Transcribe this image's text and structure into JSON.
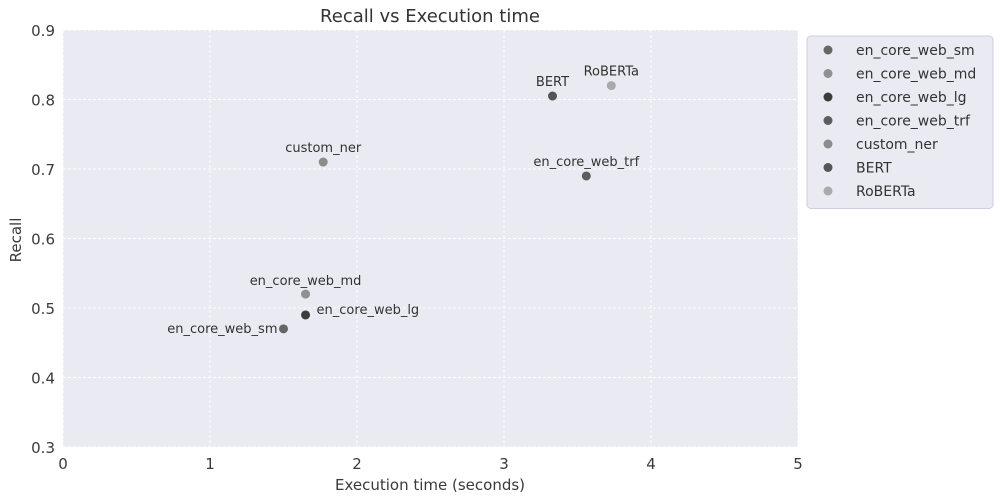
{
  "chart_data": {
    "type": "scatter",
    "title": "Recall vs Execution time",
    "xlabel": "Execution time (seconds)",
    "ylabel": "Recall",
    "xlim": [
      0,
      5
    ],
    "ylim": [
      0.3,
      0.9
    ],
    "x_ticks": [
      "0",
      "1",
      "2",
      "3",
      "4",
      "5"
    ],
    "y_ticks": [
      "0.3",
      "0.4",
      "0.5",
      "0.6",
      "0.7",
      "0.8",
      "0.9"
    ],
    "grid": true,
    "legend_position": "outside-right-top",
    "series": [
      {
        "name": "en_core_web_sm",
        "x": 1.5,
        "y": 0.47,
        "label": "en_core_web_sm",
        "color": "#666666"
      },
      {
        "name": "en_core_web_md",
        "x": 1.65,
        "y": 0.52,
        "label": "en_core_web_md",
        "color": "#909090"
      },
      {
        "name": "en_core_web_lg",
        "x": 1.65,
        "y": 0.49,
        "label": "en_core_web_lg",
        "color": "#3c3c3c"
      },
      {
        "name": "en_core_web_trf",
        "x": 3.56,
        "y": 0.69,
        "label": "en_core_web_trf",
        "color": "#5c5c5c"
      },
      {
        "name": "custom_ner",
        "x": 1.77,
        "y": 0.71,
        "label": "custom_ner",
        "color": "#8c8c8c"
      },
      {
        "name": "BERT",
        "x": 3.33,
        "y": 0.805,
        "label": "BERT",
        "color": "#555555"
      },
      {
        "name": "RoBERTa",
        "x": 3.73,
        "y": 0.82,
        "label": "RoBERTa",
        "color": "#aaaaaa"
      }
    ]
  },
  "colors": {
    "plot_background": "#eaeaf2",
    "grid": "#ffffff",
    "legend_background": "#eaeaf2",
    "legend_border": "#cfcfe0"
  }
}
